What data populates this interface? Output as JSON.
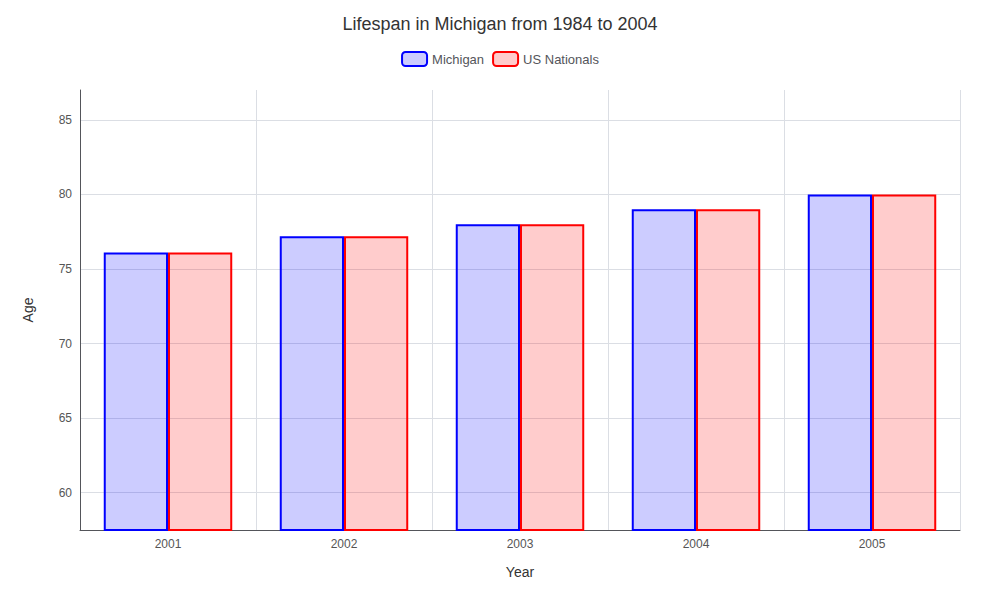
{
  "chart_data": {
    "type": "bar",
    "title": "Lifespan in Michigan from 1984 to 2004",
    "xlabel": "Year",
    "ylabel": "Age",
    "categories": [
      "2001",
      "2002",
      "2003",
      "2004",
      "2005"
    ],
    "series": [
      {
        "name": "Michigan",
        "color": "#0000ff",
        "values": [
          76.1,
          77.2,
          78.0,
          79.0,
          80.0
        ]
      },
      {
        "name": "US Nationals",
        "color": "#ff0000",
        "values": [
          76.1,
          77.2,
          78.0,
          79.0,
          80.0
        ]
      }
    ],
    "ylim": [
      57.5,
      87
    ],
    "yticks": [
      60,
      65,
      70,
      75,
      80,
      85
    ],
    "grid": true,
    "legend": "top"
  }
}
